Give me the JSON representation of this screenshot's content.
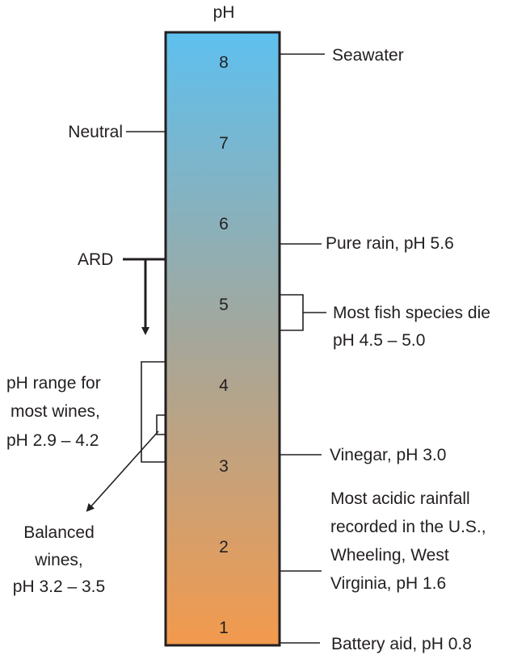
{
  "diagram": {
    "axis_title": "pH",
    "ticks": [
      "1",
      "2",
      "3",
      "4",
      "5",
      "6",
      "7",
      "8"
    ],
    "gradient": {
      "top_color": "#5ec0ef",
      "bottom_color": "#f39a4d",
      "mid_color": "#a5a79b"
    },
    "labels": {
      "seawater": "Seawater",
      "neutral": "Neutral",
      "pure_rain": "Pure rain,  pH 5.6",
      "ard": "ARD",
      "fish_line1": "Most fish species die",
      "fish_line2": "pH 4.5 – 5.0",
      "wines_line1": "pH range for",
      "wines_line2": "most wines,",
      "wines_line3": "pH 2.9 – 4.2",
      "vinegar": "Vinegar, pH 3.0",
      "acidic_line1": "Most acidic rainfall",
      "acidic_line2": "recorded  in the U.S.,",
      "acidic_line3": "Wheeling, West",
      "acidic_line4": "Virginia, pH 1.6",
      "balanced_line1": "Balanced",
      "balanced_line2": "wines,",
      "balanced_line3": "pH 3.2 – 3.5",
      "battery": "Battery aid, pH 0.8"
    }
  }
}
